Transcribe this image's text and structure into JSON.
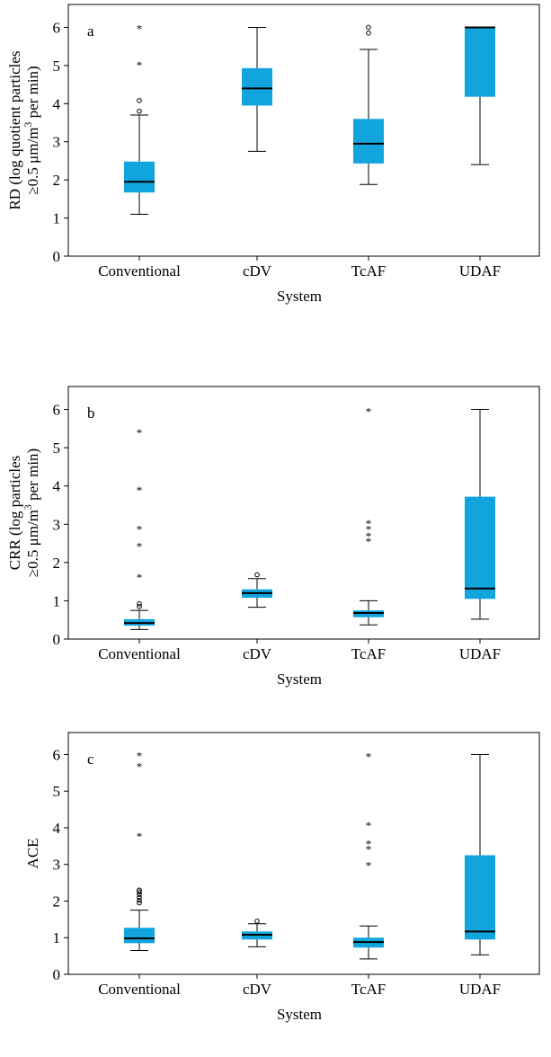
{
  "figure": {
    "box_color": "#12a5dd",
    "line_color": "#000000"
  },
  "chart_data": [
    {
      "type": "box",
      "panel": "a",
      "ylabel_line1": "RD (log quotient particles",
      "ylabel_line2_prefix": "≥0.5 μm/m",
      "ylabel_line2_sup": "3",
      "ylabel_line2_suffix": " per min)",
      "xlabel": "System",
      "ylim": [
        0,
        6.6
      ],
      "yticks": [
        "0",
        "1",
        "2",
        "3",
        "4",
        "5",
        "6"
      ],
      "categories": [
        "Conventional",
        "cDV",
        "TcAF",
        "UDAF"
      ],
      "boxes": [
        {
          "whisker_low": 1.1,
          "q1": 1.67,
          "median": 1.95,
          "q3": 2.48,
          "whisker_high": 3.7,
          "outliers": [
            3.8,
            4.08
          ],
          "extremes": [
            5.05,
            6.0
          ]
        },
        {
          "whisker_low": 2.75,
          "q1": 3.95,
          "median": 4.4,
          "q3": 4.93,
          "whisker_high": 6.0,
          "outliers": [],
          "extremes": []
        },
        {
          "whisker_low": 1.88,
          "q1": 2.43,
          "median": 2.95,
          "q3": 3.6,
          "whisker_high": 5.42,
          "outliers": [
            5.85,
            6.0
          ],
          "extremes": []
        },
        {
          "whisker_low": 2.4,
          "q1": 4.18,
          "median": 6.0,
          "q3": 6.0,
          "whisker_high": 6.0,
          "outliers": [],
          "extremes": []
        }
      ]
    },
    {
      "type": "box",
      "panel": "b",
      "ylabel_line1": "CRR (log particles",
      "ylabel_line2_prefix": "≥0.5 μm/m",
      "ylabel_line2_sup": "3",
      "ylabel_line2_suffix": " per min)",
      "xlabel": "System",
      "ylim": [
        0,
        6.6
      ],
      "yticks": [
        "0",
        "1",
        "2",
        "3",
        "4",
        "5",
        "6"
      ],
      "categories": [
        "Conventional",
        "cDV",
        "TcAF",
        "UDAF"
      ],
      "boxes": [
        {
          "whisker_low": 0.25,
          "q1": 0.35,
          "median": 0.42,
          "q3": 0.52,
          "whisker_high": 0.75,
          "outliers": [
            0.85,
            0.92
          ],
          "extremes": [
            1.65,
            2.45,
            2.9,
            3.92,
            5.42
          ]
        },
        {
          "whisker_low": 0.83,
          "q1": 1.08,
          "median": 1.2,
          "q3": 1.3,
          "whisker_high": 1.58,
          "outliers": [
            1.68
          ],
          "extremes": []
        },
        {
          "whisker_low": 0.37,
          "q1": 0.57,
          "median": 0.68,
          "q3": 0.75,
          "whisker_high": 1.0,
          "outliers": [],
          "extremes": [
            2.58,
            2.72,
            2.9,
            3.05,
            5.98
          ]
        },
        {
          "whisker_low": 0.52,
          "q1": 1.05,
          "median": 1.32,
          "q3": 3.72,
          "whisker_high": 6.0,
          "outliers": [],
          "extremes": []
        }
      ]
    },
    {
      "type": "box",
      "panel": "c",
      "ylabel_line1": "ACE",
      "ylabel_line2_prefix": "",
      "ylabel_line2_sup": "",
      "ylabel_line2_suffix": "",
      "xlabel": "System",
      "ylim": [
        0,
        6.6
      ],
      "yticks": [
        "0",
        "1",
        "2",
        "3",
        "4",
        "5",
        "6"
      ],
      "categories": [
        "Conventional",
        "cDV",
        "TcAF",
        "UDAF"
      ],
      "boxes": [
        {
          "whisker_low": 0.65,
          "q1": 0.85,
          "median": 0.98,
          "q3": 1.27,
          "whisker_high": 1.75,
          "outliers": [
            1.95,
            2.02,
            2.1,
            2.18,
            2.25,
            2.3
          ],
          "extremes": [
            3.8,
            5.7,
            6.0
          ]
        },
        {
          "whisker_low": 0.75,
          "q1": 0.95,
          "median": 1.08,
          "q3": 1.17,
          "whisker_high": 1.38,
          "outliers": [
            1.45
          ],
          "extremes": []
        },
        {
          "whisker_low": 0.42,
          "q1": 0.73,
          "median": 0.88,
          "q3": 1.0,
          "whisker_high": 1.32,
          "outliers": [],
          "extremes": [
            3.0,
            3.45,
            3.6,
            4.1,
            5.98
          ]
        },
        {
          "whisker_low": 0.53,
          "q1": 0.95,
          "median": 1.17,
          "q3": 3.25,
          "whisker_high": 6.0,
          "outliers": [],
          "extremes": []
        }
      ]
    }
  ]
}
